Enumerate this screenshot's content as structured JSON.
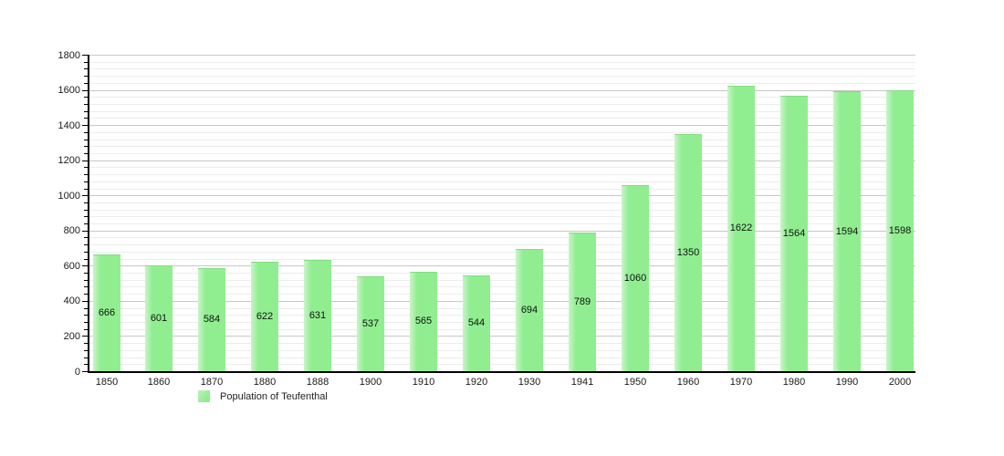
{
  "chart_data": {
    "type": "bar",
    "title": "",
    "categories": [
      "1850",
      "1860",
      "1870",
      "1880",
      "1888",
      "1900",
      "1910",
      "1920",
      "1930",
      "1941",
      "1950",
      "1960",
      "1970",
      "1980",
      "1990",
      "2000"
    ],
    "series": [
      {
        "name": "Population of Teufenthal",
        "values": [
          666,
          601,
          584,
          622,
          631,
          537,
          565,
          544,
          694,
          789,
          1060,
          1350,
          1622,
          1564,
          1594,
          1598
        ]
      }
    ],
    "xlabel": "",
    "ylabel": "",
    "ylim": [
      0,
      1800
    ],
    "ytick_step": 200,
    "minor_tick_step": 40,
    "grid": true,
    "value_labels_visible": true,
    "legend_position": "bottom-left",
    "bar_color": "#90ee90",
    "bar_highlight_color": "#caf4ca",
    "major_grid_color": "#c7c7c7",
    "minor_grid_color": "#ececec",
    "axis_color": "#000000"
  }
}
